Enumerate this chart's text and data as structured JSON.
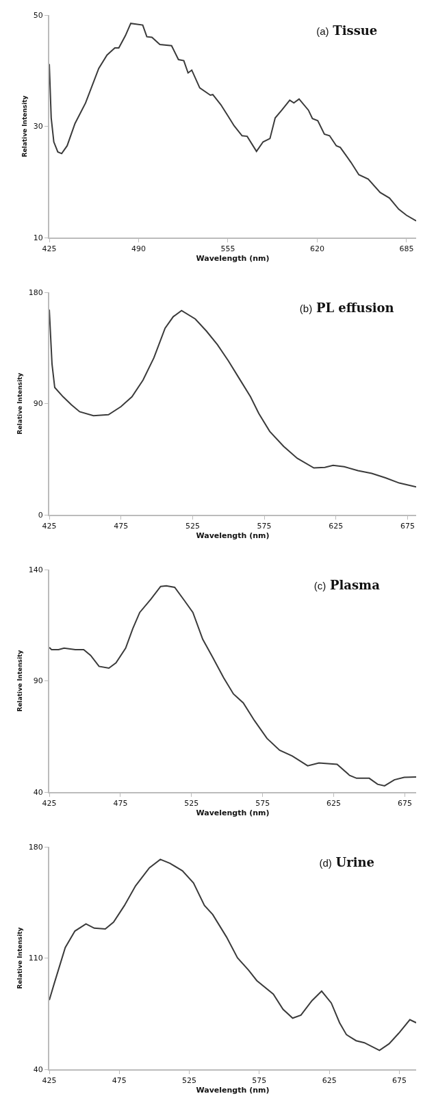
{
  "chart_data": [
    {
      "type": "line",
      "title": "(a) Tissue",
      "xlabel": "Wavelength (nm)",
      "ylabel": "Relative Intensity",
      "color": "#3a3a3a",
      "line_style": "solid",
      "xlim": [
        425,
        692
      ],
      "ylim": [
        10,
        50
      ],
      "xticks": [
        425,
        490,
        555,
        620,
        685
      ],
      "yticks": [
        10,
        30,
        50
      ],
      "x": [
        425,
        426.4,
        428.3,
        431.2,
        434,
        438,
        443.7,
        451.4,
        461,
        467,
        472.7,
        475.6,
        480.4,
        484.3,
        493,
        496,
        499.7,
        505.5,
        514,
        519,
        522.9,
        526,
        528.7,
        534.5,
        542.2,
        544,
        549.8,
        554.7,
        559.5,
        565.3,
        569,
        575.8,
        580.6,
        585.6,
        589.4,
        594.2,
        600,
        603,
        606.8,
        613.6,
        616.5,
        620.4,
        625.2,
        629,
        633.9,
        636.8,
        644.6,
        650.3,
        657.1,
        665.8,
        672.6,
        679.3,
        685,
        692
      ],
      "values": [
        41.2,
        31.5,
        27.2,
        25.4,
        25.1,
        26.5,
        30.5,
        34.2,
        40.4,
        42.8,
        44.1,
        44.1,
        46.3,
        48.5,
        48.2,
        46.1,
        46,
        44.7,
        44.5,
        42,
        41.8,
        39.6,
        40.1,
        36.9,
        35.6,
        35.7,
        33.9,
        32,
        30.1,
        28.3,
        28.2,
        25.5,
        27.2,
        27.8,
        31.5,
        32.9,
        34.7,
        34.2,
        34.9,
        32.9,
        31.4,
        31,
        28.6,
        28.3,
        26.5,
        26.2,
        23.5,
        21.3,
        20.5,
        18.1,
        17.1,
        15.1,
        14,
        13
      ]
    },
    {
      "type": "line",
      "title": "(b) PL effusion",
      "xlabel": "Wavelength (nm)",
      "ylabel": "Relative Intensity",
      "color": "#3a3a3a",
      "line_style": "solid",
      "xlim": [
        425,
        681
      ],
      "ylim": [
        0,
        180
      ],
      "xticks": [
        425,
        475,
        525,
        575,
        625,
        675
      ],
      "yticks": [
        0,
        90,
        180
      ],
      "x": [
        425,
        426.9,
        428.8,
        434.6,
        440.4,
        446.2,
        455.8,
        466.3,
        475,
        482.7,
        490.4,
        498,
        505.8,
        511.5,
        517.3,
        526.9,
        534.6,
        542.3,
        550,
        557.7,
        565.4,
        571.2,
        578.8,
        588.5,
        598,
        609.6,
        617.3,
        623,
        630.8,
        640.4,
        650,
        659.6,
        669.2,
        681
      ],
      "values": [
        166,
        122,
        103,
        95.5,
        89,
        83.4,
        80.2,
        81,
        87.5,
        95.5,
        109,
        127,
        151,
        160.3,
        165.2,
        158.4,
        148.7,
        137.7,
        124.5,
        110,
        95.5,
        82,
        67.5,
        55.4,
        45.7,
        37.9,
        38.4,
        40,
        38.9,
        35.7,
        33.5,
        29.9,
        25.7,
        22.6
      ]
    },
    {
      "type": "line",
      "title": "(c) Plasma",
      "xlabel": "Wavelength (nm)",
      "ylabel": "Relative Intensity",
      "color": "#3a3a3a",
      "line_style": "solid",
      "xlim": [
        425,
        683
      ],
      "ylim": [
        40,
        140
      ],
      "xticks": [
        425,
        475,
        525,
        575,
        625,
        675
      ],
      "yticks": [
        40,
        90,
        140
      ],
      "x": [
        425,
        426.6,
        431.5,
        435.4,
        443.3,
        449.2,
        454.1,
        460,
        466.9,
        471.9,
        478.7,
        483.7,
        488.6,
        496.5,
        503.3,
        507.3,
        513.2,
        520.1,
        526,
        532.9,
        539.8,
        547.6,
        554.5,
        561.4,
        569.3,
        578.1,
        587,
        595.9,
        606.7,
        614.6,
        627.4,
        636.2,
        641.1,
        650,
        655.9,
        660.8,
        667.7,
        674.6,
        683
      ],
      "values": [
        105,
        104,
        104,
        104.7,
        104,
        104,
        101.4,
        96.5,
        95.7,
        98.1,
        104.7,
        113.4,
        120.7,
        126.7,
        132.4,
        132.7,
        132,
        126,
        120.7,
        108.7,
        100.7,
        91.4,
        84.1,
        80.1,
        72.1,
        64.1,
        58.8,
        56.2,
        51.8,
        53.1,
        52.5,
        47.5,
        46.2,
        46.2,
        43.5,
        42.8,
        45.5,
        46.6,
        46.8
      ]
    },
    {
      "type": "line",
      "title": "(d) Urine",
      "xlabel": "Wavelength (nm)",
      "ylabel": "Relative Intensity",
      "color": "#3a3a3a",
      "line_style": "solid",
      "xlim": [
        425,
        687
      ],
      "ylim": [
        40,
        180
      ],
      "xticks": [
        425,
        475,
        525,
        575,
        625,
        675
      ],
      "yticks": [
        40,
        110,
        180
      ],
      "x": [
        425,
        428.5,
        436.4,
        443.3,
        451.2,
        457.1,
        465,
        470.9,
        478.7,
        486.6,
        496.5,
        504.3,
        511.2,
        520.1,
        528,
        535.8,
        541.7,
        551.6,
        559.4,
        567.3,
        573.2,
        585,
        591.9,
        598.8,
        604.7,
        612.6,
        619.5,
        626.4,
        632.3,
        637.2,
        644.1,
        650,
        660.8,
        667.7,
        674.6,
        682.5,
        687
      ],
      "values": [
        83.5,
        93.9,
        116.6,
        127,
        131.5,
        128.8,
        128.3,
        132.6,
        143.1,
        155.4,
        166.8,
        172.1,
        169.6,
        164.9,
        157.3,
        143.1,
        137.4,
        123.2,
        110.1,
        102.4,
        95.8,
        87.3,
        77.8,
        72.2,
        74.1,
        83.2,
        89.2,
        81.7,
        69.3,
        61.8,
        58,
        56.7,
        51.9,
        56.1,
        62.7,
        71.2,
        69.3
      ]
    }
  ]
}
